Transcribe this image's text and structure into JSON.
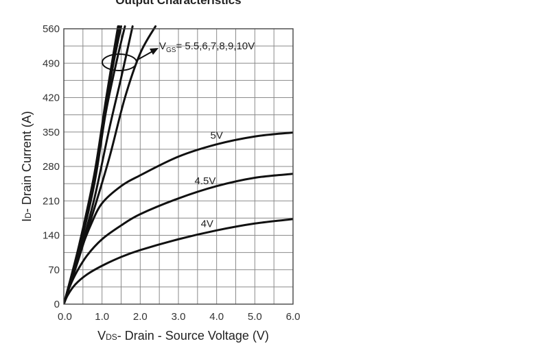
{
  "chart_data": {
    "type": "line",
    "title": "Output Characteristics",
    "xlabel": {
      "prefix": "V",
      "sub": "DS",
      "text": "- Drain - Source Voltage (V)"
    },
    "ylabel": {
      "prefix": "I",
      "sub": "D",
      "text": "- Drain Current (A)"
    },
    "xlim": [
      0,
      6
    ],
    "ylim": [
      0,
      560
    ],
    "xticks": [
      "0.0",
      "1.0",
      "2.0",
      "3.0",
      "4.0",
      "5.0",
      "6.0"
    ],
    "yticks": [
      "0",
      "70",
      "140",
      "210",
      "280",
      "350",
      "420",
      "490",
      "560"
    ],
    "grid": true,
    "annotation": {
      "prefix": "V",
      "sub": "GS",
      "text": "= 5.5,6,7,8,9,10V"
    },
    "series": [
      {
        "name": "4V",
        "x": [
          0,
          0.1,
          0.3,
          0.6,
          1.0,
          1.5,
          2.0,
          3.0,
          4.0,
          5.0,
          6.0
        ],
        "y": [
          0,
          18,
          40,
          60,
          78,
          96,
          110,
          132,
          150,
          164,
          173
        ]
      },
      {
        "name": "4.5V",
        "x": [
          0,
          0.1,
          0.3,
          0.6,
          1.0,
          1.5,
          2.0,
          3.0,
          4.0,
          5.0,
          6.0
        ],
        "y": [
          0,
          25,
          60,
          98,
          132,
          160,
          183,
          215,
          240,
          257,
          265
        ]
      },
      {
        "name": "5V",
        "x": [
          0,
          0.2,
          0.4,
          0.7,
          1.0,
          1.5,
          2.0,
          3.0,
          4.0,
          5.0,
          6.0
        ],
        "y": [
          0,
          50,
          100,
          160,
          205,
          240,
          262,
          300,
          325,
          341,
          349
        ]
      },
      {
        "name": "5.5V",
        "x": [
          0,
          0.4,
          0.8,
          1.2,
          1.6,
          2.0,
          2.4
        ],
        "y": [
          0,
          95,
          195,
          300,
          420,
          510,
          565
        ]
      },
      {
        "name": "6V",
        "x": [
          0,
          0.4,
          0.8,
          1.2,
          1.5,
          1.8
        ],
        "y": [
          0,
          100,
          215,
          360,
          460,
          565
        ]
      },
      {
        "name": "7V",
        "x": [
          0,
          0.4,
          0.8,
          1.1,
          1.4,
          1.6
        ],
        "y": [
          0,
          110,
          245,
          390,
          500,
          565
        ]
      },
      {
        "name": "8V",
        "x": [
          0,
          0.4,
          0.8,
          1.1,
          1.3,
          1.5
        ],
        "y": [
          0,
          115,
          255,
          400,
          490,
          565
        ]
      },
      {
        "name": "9V",
        "x": [
          0,
          0.4,
          0.8,
          1.1,
          1.3,
          1.45
        ],
        "y": [
          0,
          118,
          260,
          410,
          500,
          565
        ]
      },
      {
        "name": "10V",
        "x": [
          0,
          0.4,
          0.8,
          1.1,
          1.3,
          1.42
        ],
        "y": [
          0,
          120,
          265,
          415,
          510,
          565
        ]
      }
    ],
    "labeled_series": [
      "4V",
      "4.5V",
      "5V"
    ]
  }
}
